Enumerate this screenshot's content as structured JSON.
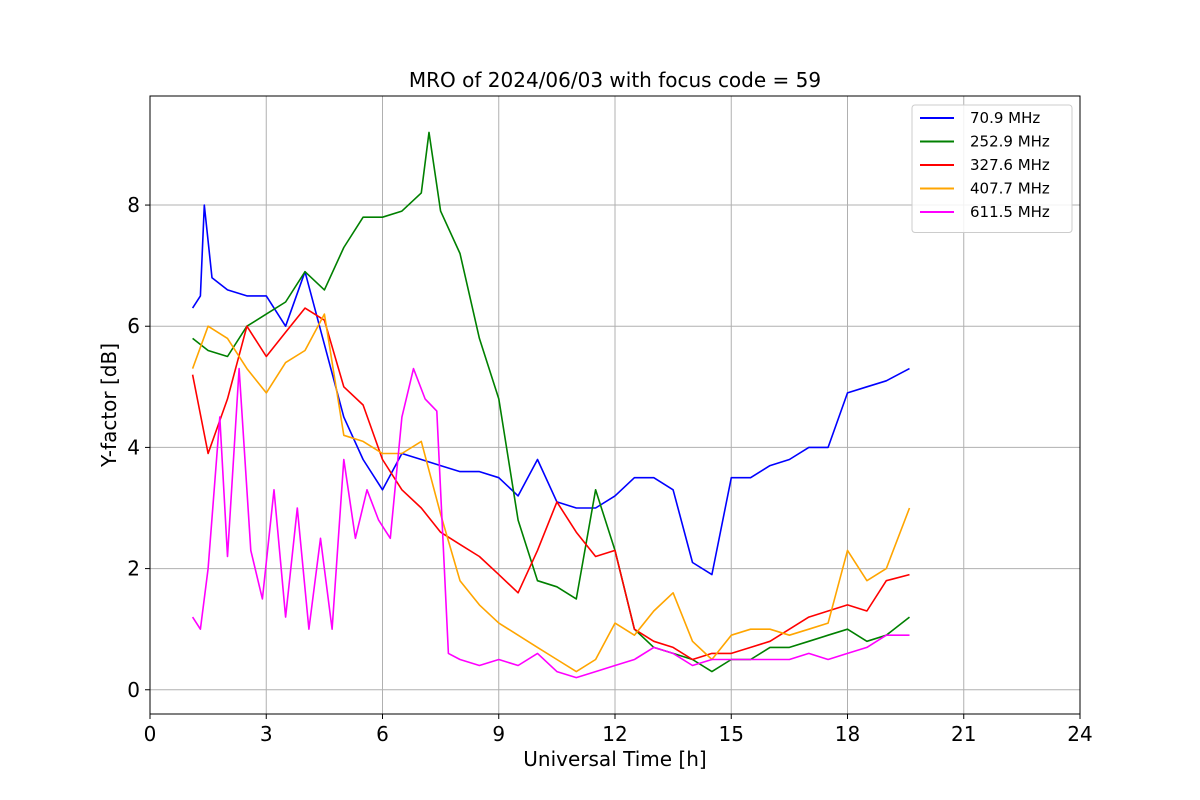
{
  "chart_data": {
    "type": "line",
    "title": "MRO of 2024/06/03 with focus code = 59",
    "xlabel": "Universal Time [h]",
    "ylabel": "Y-factor [dB]",
    "xlim": [
      0,
      24
    ],
    "ylim": [
      -0.4,
      9.8
    ],
    "xticks": [
      0,
      3,
      6,
      9,
      12,
      15,
      18,
      21,
      24
    ],
    "yticks": [
      0,
      2,
      4,
      6,
      8
    ],
    "grid": true,
    "legend_position": "top-right",
    "series": [
      {
        "name": " 70.9 MHz",
        "color": "#0000ff",
        "x": [
          1.1,
          1.3,
          1.4,
          1.6,
          2.0,
          2.5,
          3.0,
          3.5,
          4.0,
          4.5,
          5.0,
          5.5,
          6.0,
          6.5,
          7.0,
          7.5,
          8.0,
          8.5,
          9.0,
          9.5,
          10.0,
          10.5,
          11.0,
          11.5,
          12.0,
          12.5,
          13.0,
          13.5,
          14.0,
          14.5,
          15.0,
          15.5,
          16.0,
          16.5,
          17.0,
          17.5,
          18.0,
          18.5,
          19.0,
          19.6
        ],
        "y": [
          6.3,
          6.5,
          8.0,
          6.8,
          6.6,
          6.5,
          6.5,
          6.0,
          6.9,
          5.7,
          4.5,
          3.8,
          3.3,
          3.9,
          3.8,
          3.7,
          3.6,
          3.6,
          3.5,
          3.2,
          3.8,
          3.1,
          3.0,
          3.0,
          3.2,
          3.5,
          3.5,
          3.3,
          2.1,
          1.9,
          3.5,
          3.5,
          3.7,
          3.8,
          4.0,
          4.0,
          4.9,
          5.0,
          5.1,
          5.3
        ]
      },
      {
        "name": "252.9 MHz",
        "color": "#008000",
        "x": [
          1.1,
          1.5,
          2.0,
          2.5,
          3.0,
          3.5,
          4.0,
          4.5,
          5.0,
          5.5,
          6.0,
          6.5,
          7.0,
          7.2,
          7.5,
          8.0,
          8.5,
          9.0,
          9.5,
          10.0,
          10.5,
          11.0,
          11.5,
          12.0,
          12.5,
          13.0,
          13.5,
          14.0,
          14.5,
          15.0,
          15.5,
          16.0,
          16.5,
          17.0,
          17.5,
          18.0,
          18.5,
          19.0,
          19.6
        ],
        "y": [
          5.8,
          5.6,
          5.5,
          6.0,
          6.2,
          6.4,
          6.9,
          6.6,
          7.3,
          7.8,
          7.8,
          7.9,
          8.2,
          9.2,
          7.9,
          7.2,
          5.8,
          4.8,
          2.8,
          1.8,
          1.7,
          1.5,
          3.3,
          2.3,
          1.0,
          0.7,
          0.6,
          0.5,
          0.3,
          0.5,
          0.5,
          0.7,
          0.7,
          0.8,
          0.9,
          1.0,
          0.8,
          0.9,
          1.2
        ]
      },
      {
        "name": "327.6 MHz",
        "color": "#ff0000",
        "x": [
          1.1,
          1.5,
          2.0,
          2.5,
          3.0,
          3.5,
          4.0,
          4.5,
          5.0,
          5.5,
          6.0,
          6.5,
          7.0,
          7.5,
          8.0,
          8.5,
          9.0,
          9.5,
          10.0,
          10.5,
          11.0,
          11.5,
          12.0,
          12.5,
          13.0,
          13.5,
          14.0,
          14.5,
          15.0,
          15.5,
          16.0,
          16.5,
          17.0,
          17.5,
          18.0,
          18.5,
          19.0,
          19.6
        ],
        "y": [
          5.2,
          3.9,
          4.8,
          6.0,
          5.5,
          5.9,
          6.3,
          6.1,
          5.0,
          4.7,
          3.8,
          3.3,
          3.0,
          2.6,
          2.4,
          2.2,
          1.9,
          1.6,
          2.3,
          3.1,
          2.6,
          2.2,
          2.3,
          1.0,
          0.8,
          0.7,
          0.5,
          0.6,
          0.6,
          0.7,
          0.8,
          1.0,
          1.2,
          1.3,
          1.4,
          1.3,
          1.8,
          1.9
        ]
      },
      {
        "name": "407.7 MHz",
        "color": "#ffa500",
        "x": [
          1.1,
          1.5,
          2.0,
          2.5,
          3.0,
          3.5,
          4.0,
          4.5,
          5.0,
          5.5,
          6.0,
          6.5,
          7.0,
          7.5,
          8.0,
          8.5,
          9.0,
          9.5,
          10.0,
          10.5,
          11.0,
          11.5,
          12.0,
          12.5,
          13.0,
          13.5,
          14.0,
          14.5,
          15.0,
          15.5,
          16.0,
          16.5,
          17.0,
          17.5,
          18.0,
          18.5,
          19.0,
          19.6
        ],
        "y": [
          5.3,
          6.0,
          5.8,
          5.3,
          4.9,
          5.4,
          5.6,
          6.2,
          4.2,
          4.1,
          3.9,
          3.9,
          4.1,
          2.9,
          1.8,
          1.4,
          1.1,
          0.9,
          0.7,
          0.5,
          0.3,
          0.5,
          1.1,
          0.9,
          1.3,
          1.6,
          0.8,
          0.5,
          0.9,
          1.0,
          1.0,
          0.9,
          1.0,
          1.1,
          2.3,
          1.8,
          2.0,
          3.0
        ]
      },
      {
        "name": "611.5 MHz",
        "color": "#ff00ff",
        "x": [
          1.1,
          1.3,
          1.5,
          1.8,
          2.0,
          2.3,
          2.6,
          2.9,
          3.2,
          3.5,
          3.8,
          4.1,
          4.4,
          4.7,
          5.0,
          5.3,
          5.6,
          5.9,
          6.2,
          6.5,
          6.8,
          7.1,
          7.4,
          7.7,
          8.0,
          8.5,
          9.0,
          9.5,
          10.0,
          10.5,
          11.0,
          11.5,
          12.0,
          12.5,
          13.0,
          13.5,
          14.0,
          14.5,
          15.0,
          15.5,
          16.0,
          16.5,
          17.0,
          17.5,
          18.0,
          18.5,
          19.0,
          19.6
        ],
        "y": [
          1.2,
          1.0,
          2.0,
          4.5,
          2.2,
          5.3,
          2.3,
          1.5,
          3.3,
          1.2,
          3.0,
          1.0,
          2.5,
          1.0,
          3.8,
          2.5,
          3.3,
          2.8,
          2.5,
          4.5,
          5.3,
          4.8,
          4.6,
          0.6,
          0.5,
          0.4,
          0.5,
          0.4,
          0.6,
          0.3,
          0.2,
          0.3,
          0.4,
          0.5,
          0.7,
          0.6,
          0.4,
          0.5,
          0.5,
          0.5,
          0.5,
          0.5,
          0.6,
          0.5,
          0.6,
          0.7,
          0.9,
          0.9
        ]
      }
    ]
  }
}
